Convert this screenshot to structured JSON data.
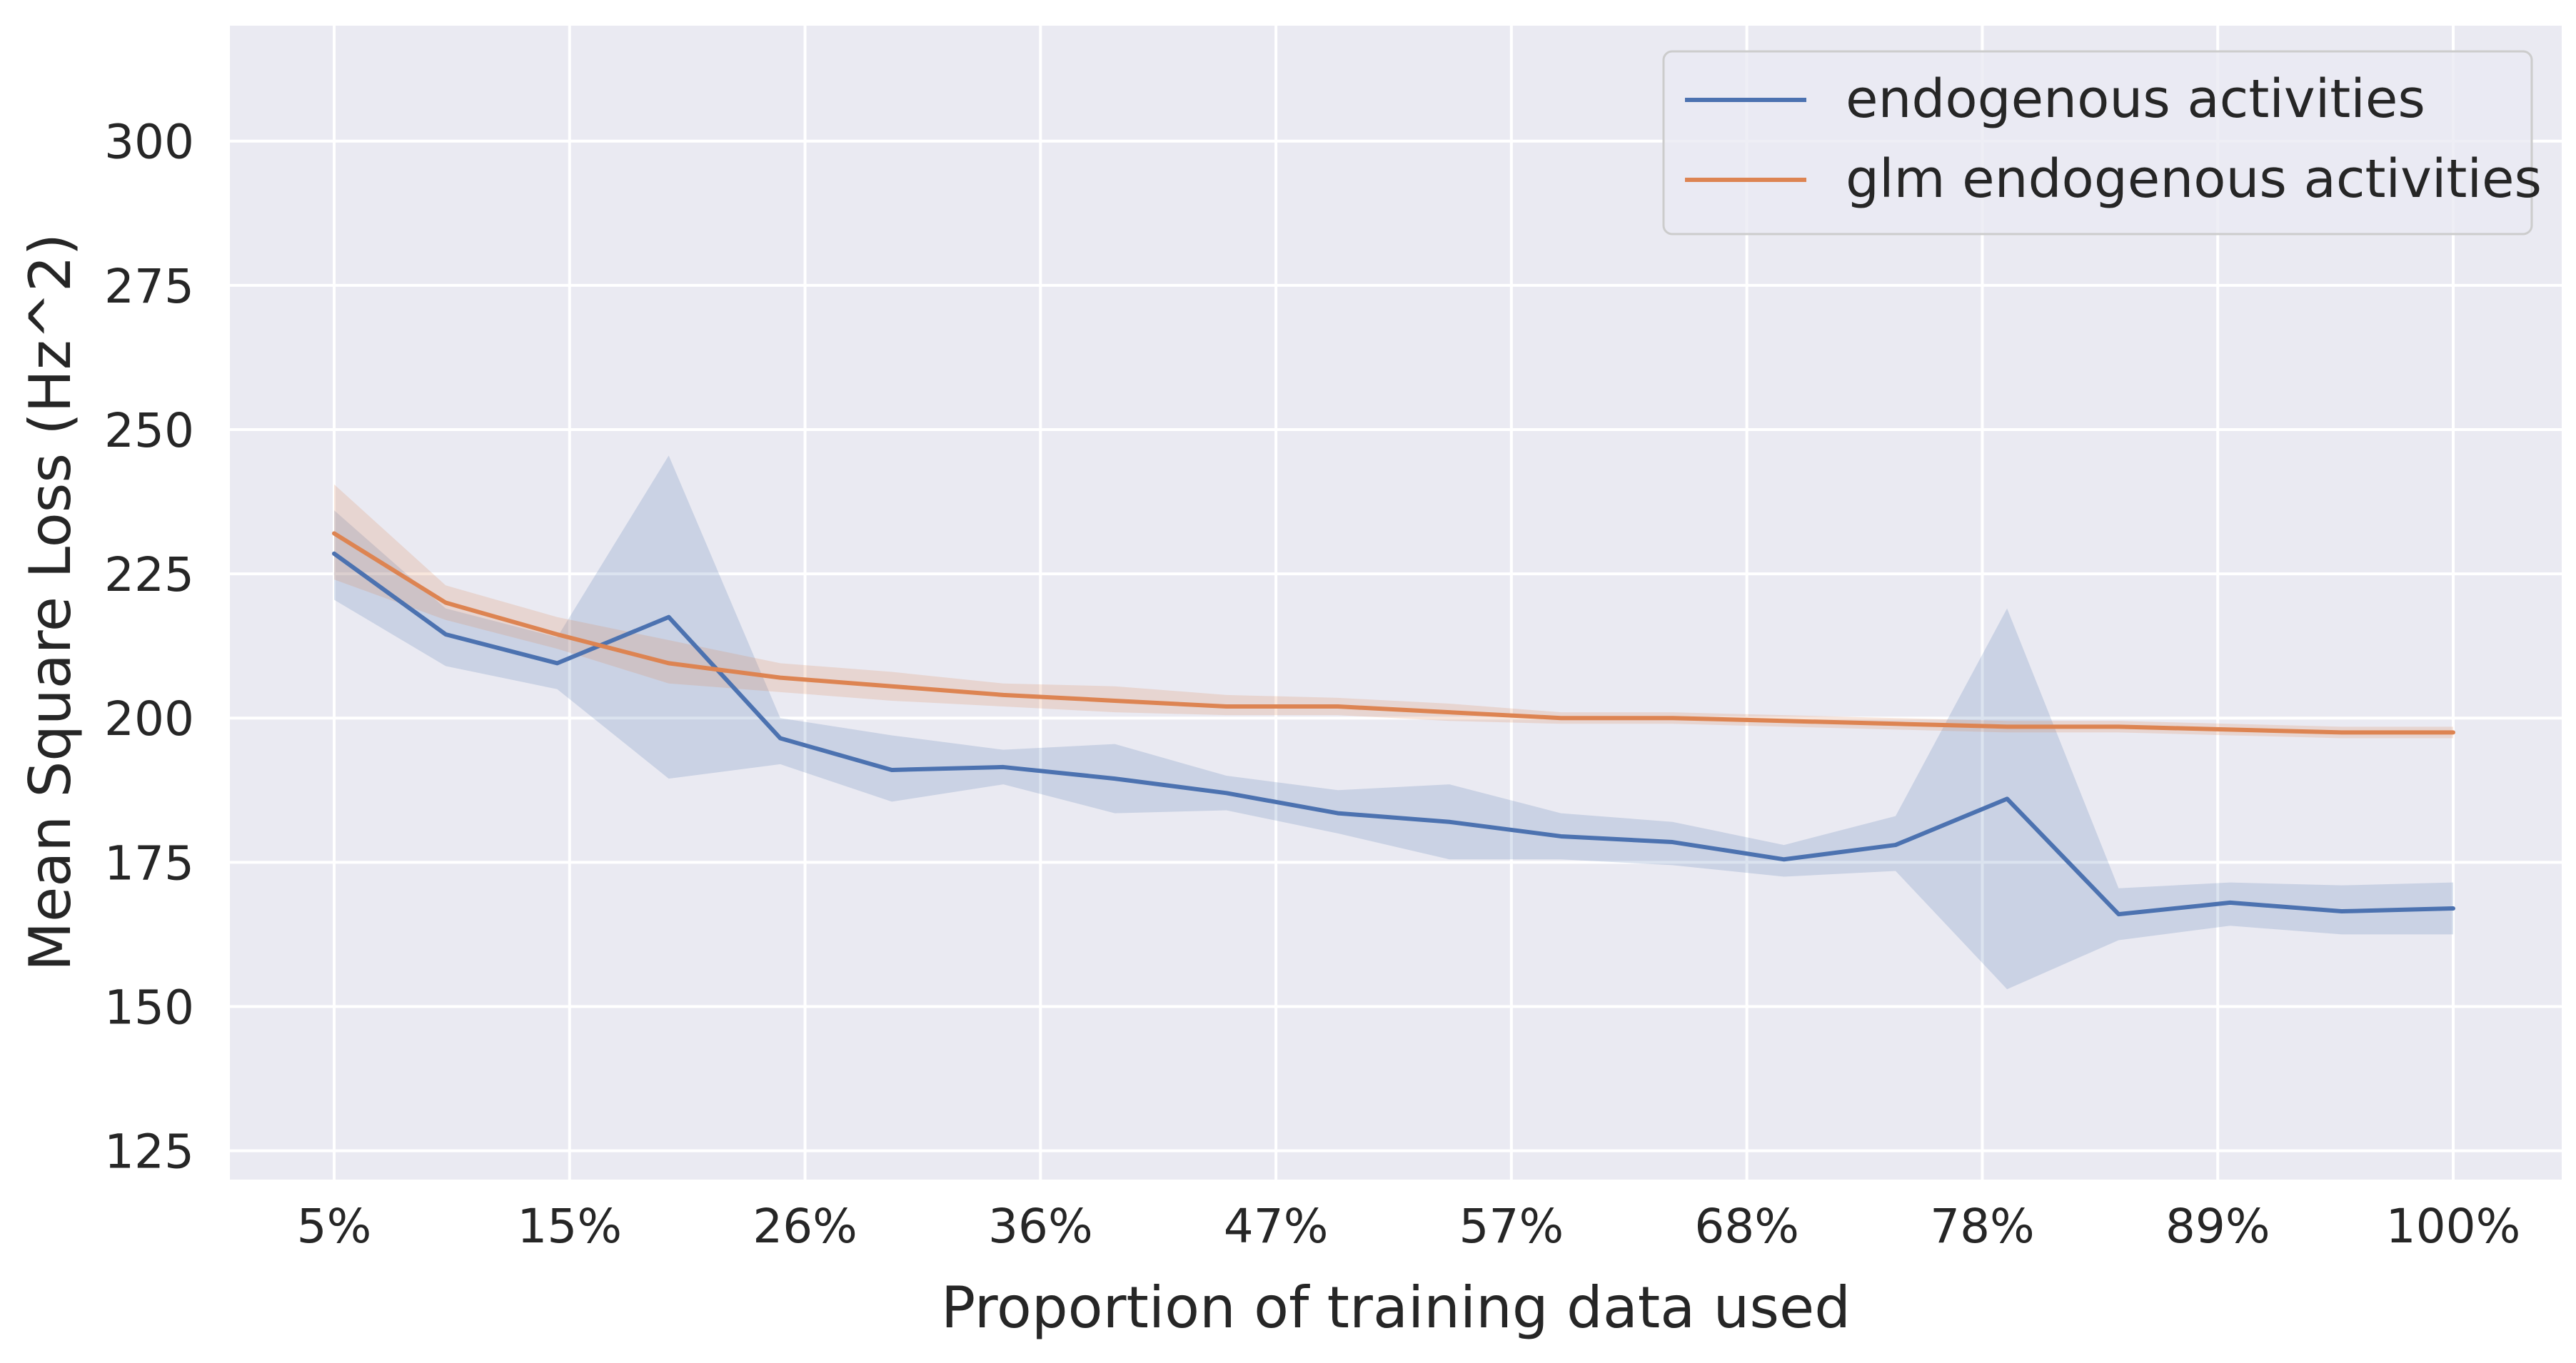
{
  "chart_data": {
    "type": "line",
    "xlabel": "Proportion of training data used",
    "ylabel": "Mean Square Loss (Hz^2)",
    "x_ticks": [
      "5%",
      "15%",
      "26%",
      "36%",
      "47%",
      "57%",
      "68%",
      "78%",
      "89%",
      "100%"
    ],
    "ylim": [
      120,
      320
    ],
    "y_ticks": [
      125,
      150,
      175,
      200,
      225,
      250,
      275,
      300
    ],
    "grid": true,
    "legend_position": "top-right",
    "x_points": [
      5,
      10,
      15,
      20,
      25,
      30,
      35,
      40,
      45,
      50,
      55,
      60,
      65,
      70,
      75,
      80,
      85,
      90,
      95,
      100
    ],
    "series": [
      {
        "name": "endogenous activities",
        "color": "#4c72b0",
        "values": [
          228.5,
          214.5,
          209.5,
          217.5,
          196.5,
          191.0,
          191.5,
          189.5,
          187.0,
          183.5,
          182.0,
          179.5,
          178.5,
          175.5,
          178.0,
          186.0,
          166.0,
          168.0,
          166.5,
          167.0
        ],
        "lower": [
          220.5,
          209.0,
          205.0,
          189.5,
          192.0,
          185.5,
          188.5,
          183.5,
          184.0,
          180.0,
          175.5,
          175.5,
          174.5,
          172.5,
          173.5,
          153.0,
          161.5,
          164.0,
          162.5,
          162.5
        ],
        "upper": [
          236.0,
          219.0,
          214.0,
          245.5,
          200.0,
          197.0,
          194.5,
          195.5,
          190.0,
          187.5,
          188.5,
          183.5,
          182.0,
          178.0,
          183.0,
          219.0,
          170.5,
          171.5,
          171.0,
          171.5
        ]
      },
      {
        "name": "glm endogenous activities",
        "color": "#dd8452",
        "values": [
          232.0,
          220.0,
          214.5,
          209.5,
          207.0,
          205.5,
          204.0,
          203.0,
          202.0,
          202.0,
          201.0,
          200.0,
          200.0,
          199.5,
          199.0,
          198.5,
          198.5,
          198.0,
          197.5,
          197.5
        ],
        "lower": [
          224.0,
          217.0,
          212.0,
          206.0,
          204.5,
          203.0,
          202.0,
          201.0,
          200.5,
          200.5,
          199.5,
          199.0,
          199.0,
          198.5,
          198.0,
          197.5,
          197.5,
          197.0,
          196.5,
          196.5
        ],
        "upper": [
          240.5,
          223.0,
          217.5,
          213.5,
          209.5,
          208.0,
          206.0,
          205.5,
          204.0,
          203.5,
          202.5,
          201.0,
          201.0,
          200.5,
          200.0,
          199.5,
          199.5,
          199.0,
          198.5,
          198.5
        ]
      }
    ]
  }
}
